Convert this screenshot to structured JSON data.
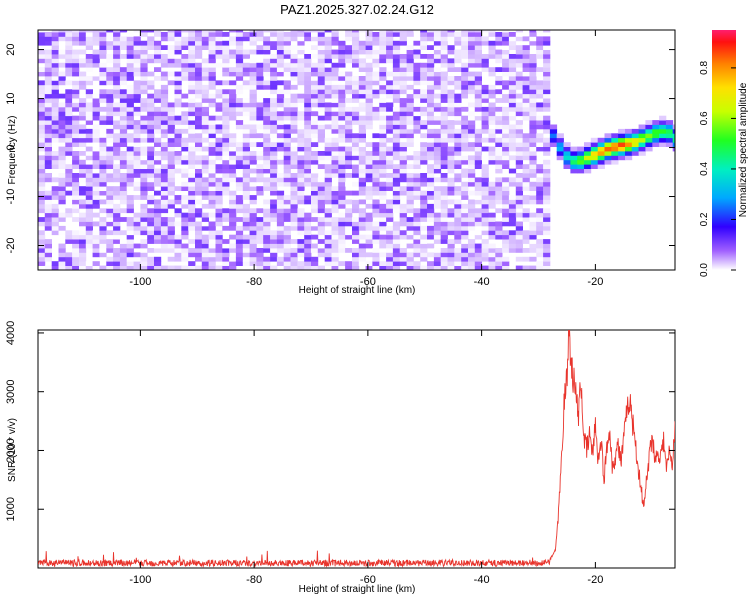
{
  "title": "PAZ1.2025.327.02.24.G12",
  "chart_data": [
    {
      "type": "heatmap",
      "xlabel": "Height of straight line (km)",
      "ylabel": "Frequency (Hz)",
      "xlim": [
        -118,
        -6
      ],
      "ylim": [
        -25,
        24
      ],
      "xticks": [
        -100,
        -80,
        -60,
        -40,
        -20
      ],
      "yticks": [
        -20,
        -10,
        0,
        10,
        20
      ],
      "signal_onset_km": -28,
      "signal_track": {
        "x": [
          -28,
          -26,
          -24,
          -22,
          -20,
          -18,
          -16,
          -14,
          -12,
          -10,
          -8,
          -6
        ],
        "freq_hz": [
          2,
          -2,
          -3.5,
          -2.5,
          -1.5,
          -0.5,
          0,
          0.5,
          1.5,
          2.5,
          3,
          1
        ],
        "peak_amplitude": [
          0.25,
          0.35,
          0.5,
          0.65,
          0.8,
          0.85,
          0.88,
          0.75,
          0.6,
          0.55,
          0.5,
          0.45
        ]
      },
      "background_amplitude_range": [
        0.0,
        0.12
      ],
      "colorbar": {
        "label": "Normalized spectral amplitude",
        "range": [
          0.0,
          0.95
        ],
        "ticks": [
          "0.0",
          "0.2",
          "0.4",
          "0.6",
          "0.8"
        ]
      }
    },
    {
      "type": "line",
      "xlabel": "Height of straight line (km)",
      "ylabel": "SNR (10 * v/v)",
      "xlim": [
        -118,
        -6
      ],
      "ylim": [
        0,
        4050
      ],
      "xticks": [
        -100,
        -80,
        -60,
        -40,
        -20
      ],
      "yticks": [
        1000,
        2000,
        3000,
        4000
      ],
      "color": "#e8342c",
      "series": [
        {
          "name": "SNR",
          "x": [
            -118,
            -28,
            -27,
            -26.5,
            -26,
            -25.5,
            -25,
            -24.7,
            -24.3,
            -24,
            -23.5,
            -23,
            -22.5,
            -22,
            -21.5,
            -21,
            -20.5,
            -20,
            -19.5,
            -19,
            -18.5,
            -18,
            -17.5,
            -17,
            -16.5,
            -16,
            -15.5,
            -15,
            -14.5,
            -14,
            -13.5,
            -13,
            -12.5,
            -12,
            -11.5,
            -11,
            -10.5,
            -10,
            -9.5,
            -9,
            -8.5,
            -8,
            -7.5,
            -7,
            -6.5,
            -6
          ],
          "y": [
            140,
            140,
            300,
            900,
            1800,
            2800,
            3200,
            4000,
            3700,
            3300,
            3000,
            2600,
            3150,
            2200,
            2000,
            2300,
            1900,
            2500,
            1800,
            2200,
            1500,
            2000,
            2400,
            1700,
            1900,
            2100,
            1800,
            2200,
            2600,
            2900,
            2500,
            2200,
            1700,
            1400,
            1000,
            1500,
            1900,
            2300,
            1800,
            2000,
            1900,
            2200,
            1650,
            2000,
            1700,
            2450
          ]
        }
      ],
      "noise_level": 140
    }
  ]
}
